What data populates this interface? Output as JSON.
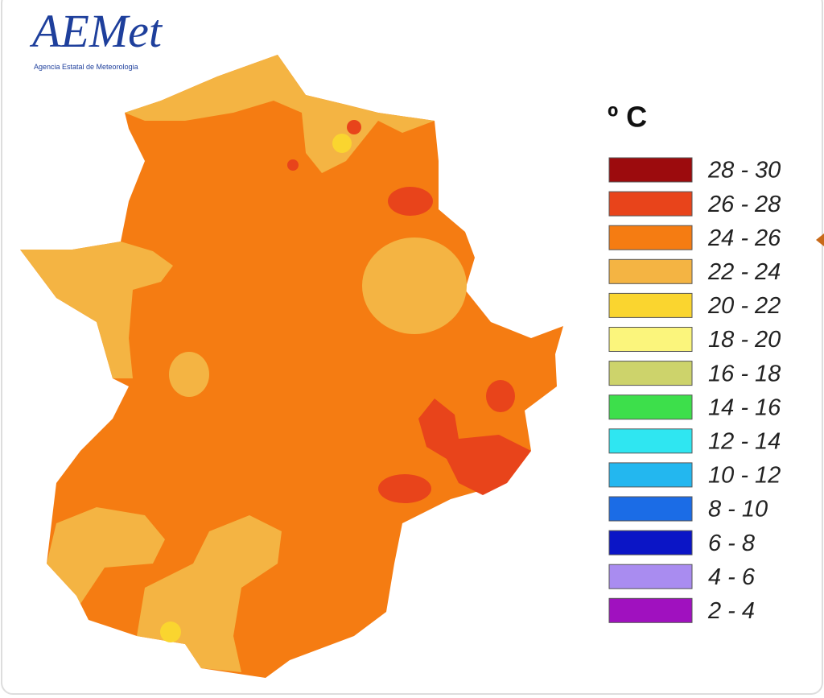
{
  "logo": {
    "name": "AEMet",
    "subtitle": "Agencia Estatal de Meteorologia"
  },
  "legend": {
    "title": "º C",
    "items": [
      {
        "label": "28 - 30",
        "color": "#9c0b0d"
      },
      {
        "label": "26 - 28",
        "color": "#e8441b"
      },
      {
        "label": "24 - 26",
        "color": "#f57c12"
      },
      {
        "label": "22 - 24",
        "color": "#f4b443"
      },
      {
        "label": "20 - 22",
        "color": "#fad52f"
      },
      {
        "label": "18 - 20",
        "color": "#fbf57c"
      },
      {
        "label": "16 - 18",
        "color": "#cdd36b"
      },
      {
        "label": "14 - 16",
        "color": "#3ddf4b"
      },
      {
        "label": "12 - 14",
        "color": "#2fe6f1"
      },
      {
        "label": "10 - 12",
        "color": "#23b7ef"
      },
      {
        "label": "8 - 10",
        "color": "#1b6ce6"
      },
      {
        "label": "6 - 8",
        "color": "#0b15c6"
      },
      {
        "label": "4 - 6",
        "color": "#a98cf0"
      },
      {
        "label": "2 - 4",
        "color": "#a011bf"
      }
    ]
  }
}
